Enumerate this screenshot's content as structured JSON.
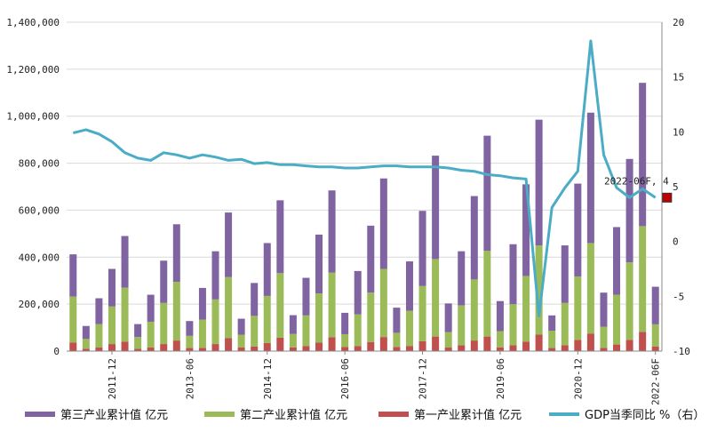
{
  "chart_data": {
    "type": "bar",
    "stacked": true,
    "secondary_axis": true,
    "categories": [
      "2011-03",
      "2011-06",
      "2011-09",
      "2011-12",
      "2012-03",
      "2012-06",
      "2012-09",
      "2012-12",
      "2013-03",
      "2013-06",
      "2013-09",
      "2013-12",
      "2014-03",
      "2014-06",
      "2014-09",
      "2014-12",
      "2015-03",
      "2015-06",
      "2015-09",
      "2015-12",
      "2016-03",
      "2016-06",
      "2016-09",
      "2016-12",
      "2017-03",
      "2017-06",
      "2017-09",
      "2017-12",
      "2018-03",
      "2018-06",
      "2018-09",
      "2018-12",
      "2019-03",
      "2019-06",
      "2019-09",
      "2019-12",
      "2020-03",
      "2020-06",
      "2020-09",
      "2020-12",
      "2021-03",
      "2021-06",
      "2021-09",
      "2021-12",
      "2022-03",
      "2022-06"
    ],
    "x_tick_labels": [
      {
        "index": 3,
        "label": "2011-12"
      },
      {
        "index": 9,
        "label": "2013-06"
      },
      {
        "index": 15,
        "label": "2014-12"
      },
      {
        "index": 21,
        "label": "2016-06"
      },
      {
        "index": 27,
        "label": "2017-12"
      },
      {
        "index": 33,
        "label": "2019-06"
      },
      {
        "index": 39,
        "label": "2020-12"
      },
      {
        "index": 45,
        "label": "2022-06F"
      }
    ],
    "series": [
      {
        "name": "第一产业累计值 亿元",
        "color": "#c0504d",
        "axis": "left",
        "values": [
          37000,
          10000,
          15000,
          30000,
          40000,
          10000,
          15000,
          30000,
          45000,
          13000,
          14000,
          30000,
          55000,
          15000,
          20000,
          35000,
          57000,
          16000,
          22000,
          36000,
          59000,
          17000,
          21000,
          39000,
          60000,
          18000,
          22000,
          42000,
          62000,
          15000,
          25000,
          45000,
          62000,
          16000,
          25000,
          40000,
          70000,
          13000,
          25000,
          48000,
          75000,
          14000,
          28000,
          48000,
          82000,
          19000
        ]
      },
      {
        "name": "第二产业累计值 亿元",
        "color": "#9bbb59",
        "axis": "left",
        "values": [
          195000,
          42000,
          100000,
          160000,
          230000,
          50000,
          110000,
          175000,
          250000,
          52000,
          120000,
          190000,
          260000,
          55000,
          130000,
          200000,
          275000,
          57000,
          130000,
          210000,
          275000,
          55000,
          135000,
          210000,
          290000,
          60000,
          150000,
          235000,
          330000,
          66000,
          170000,
          260000,
          365000,
          69000,
          175000,
          280000,
          380000,
          74000,
          180000,
          270000,
          385000,
          90000,
          212000,
          330000,
          450000,
          95000
        ]
      },
      {
        "name": "第三产业累计值 亿元",
        "color": "#8064a2",
        "axis": "left",
        "values": [
          180000,
          55000,
          110000,
          160000,
          220000,
          55000,
          115000,
          180000,
          245000,
          63000,
          135000,
          205000,
          275000,
          68000,
          140000,
          225000,
          310000,
          80000,
          160000,
          250000,
          350000,
          91000,
          185000,
          285000,
          385000,
          107000,
          210000,
          320000,
          440000,
          122000,
          230000,
          355000,
          490000,
          128000,
          255000,
          390000,
          535000,
          65000,
          245000,
          395000,
          555000,
          145000,
          288000,
          440000,
          610000,
          160000
        ]
      },
      {
        "name": "GDP当季同比 %（右）",
        "color": "#4bacc6",
        "axis": "right",
        "type": "line",
        "values": [
          9.9,
          10.2,
          9.8,
          9.1,
          8.1,
          7.6,
          7.4,
          8.1,
          7.9,
          7.6,
          7.9,
          7.7,
          7.4,
          7.5,
          7.1,
          7.2,
          7.0,
          7.0,
          6.9,
          6.8,
          6.8,
          6.7,
          6.7,
          6.8,
          6.9,
          6.9,
          6.8,
          6.8,
          6.8,
          6.7,
          6.5,
          6.4,
          6.1,
          6.0,
          5.8,
          5.7,
          -6.8,
          3.1,
          4.9,
          6.4,
          18.3,
          7.9,
          4.9,
          4.0,
          4.8,
          4.0
        ]
      }
    ],
    "ylim": [
      0,
      1400000
    ],
    "y_ticks": [
      "0",
      "200,000",
      "400,000",
      "600,000",
      "800,000",
      "1,000,000",
      "1,200,000",
      "1,400,000"
    ],
    "y2lim": [
      -10,
      20
    ],
    "y2_ticks": [
      "-10",
      "-5",
      "0",
      "5",
      "10",
      "15",
      "20"
    ],
    "annotations": [
      {
        "text": "2022-06F, 4",
        "series_index": 3,
        "point_index": 45,
        "marker_color": "#c00000"
      }
    ],
    "title": "",
    "xlabel": "",
    "ylabel": "",
    "grid": true,
    "legend_position": "bottom"
  }
}
